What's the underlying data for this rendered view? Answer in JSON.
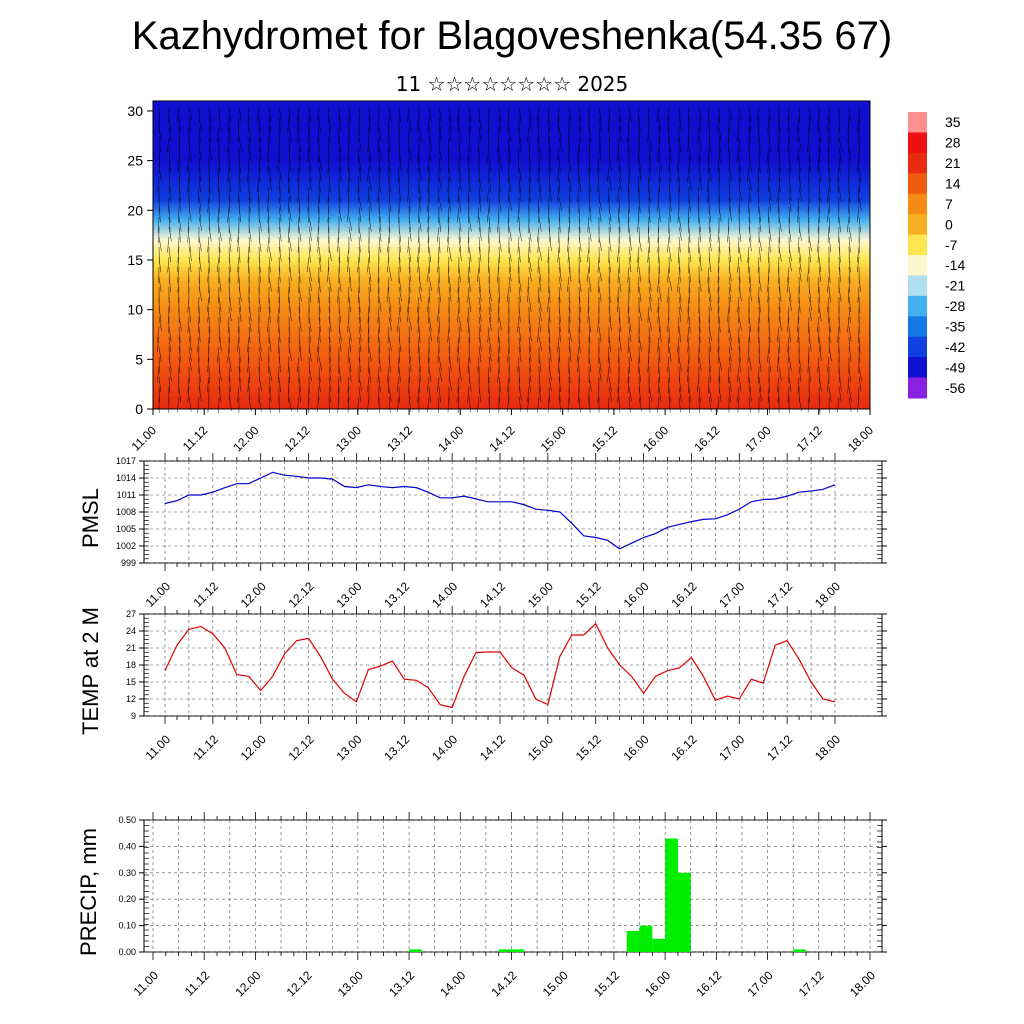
{
  "header": {
    "title": "Kazhydromet for Blagoveshenka(54.35 67)",
    "subtitle": "11 ☆☆☆☆☆☆☆☆ 2025"
  },
  "chart_data": [
    {
      "type": "heatmap",
      "title": "",
      "xlabel": "",
      "ylabel": "",
      "x_ticks": [
        "11.00",
        "11.12",
        "12.00",
        "12.12",
        "13.00",
        "13.12",
        "14.00",
        "14.12",
        "15.00",
        "15.12",
        "16.00",
        "16.12",
        "17.00",
        "17.12",
        "18.00"
      ],
      "y_ticks": [
        0,
        5,
        10,
        15,
        20,
        25,
        30
      ],
      "ylim": [
        0,
        31
      ],
      "colorbar_labels": [
        "35",
        "28",
        "21",
        "14",
        "7",
        "0",
        "-7",
        "-14",
        "-21",
        "-28",
        "-35",
        "-42",
        "-49",
        "-56"
      ],
      "colors": {
        "35": "#ff9090",
        "28": "#ee1010",
        "21": "#e82a10",
        "14": "#f25a10",
        "7": "#f58a15",
        "0": "#f9b020",
        "-7": "#fde650",
        "-14": "#fdf8d0",
        "-21": "#b0dff2",
        "-28": "#45b0f0",
        "-35": "#1878e8",
        "-42": "#1040e0",
        "-49": "#1010d0",
        "-56": "#8a20e0"
      },
      "temperature_by_height": [
        {
          "height": 0,
          "value": 21
        },
        {
          "height": 5,
          "value": 14
        },
        {
          "height": 10,
          "value": 7
        },
        {
          "height": 13,
          "value": 0
        },
        {
          "height": 15,
          "value": -7
        },
        {
          "height": 17,
          "value": -14
        },
        {
          "height": 19,
          "value": -28
        },
        {
          "height": 21,
          "value": -42
        },
        {
          "height": 25,
          "value": -49
        },
        {
          "height": 31,
          "value": -49
        }
      ],
      "wind_barbs": true
    },
    {
      "type": "line",
      "ylabel": "PMSL",
      "ylim": [
        999,
        1017
      ],
      "y_ticks": [
        "1017",
        "1014",
        "1011",
        "1008",
        "1005",
        "1002",
        "999"
      ],
      "x_ticks": [
        "11.00",
        "11.12",
        "12.00",
        "12.12",
        "13.00",
        "13.12",
        "14.00",
        "14.12",
        "15.00",
        "15.12",
        "16.00",
        "16.12",
        "17.00",
        "17.12",
        "18.00"
      ],
      "grid": true,
      "color": "#0000cc",
      "x": [
        0,
        3,
        6,
        9,
        12,
        15,
        18,
        21,
        24,
        27,
        30,
        33,
        36,
        39,
        42,
        45,
        48,
        51,
        54,
        57,
        60,
        63,
        66,
        69,
        72,
        75,
        78,
        81,
        84,
        87,
        90,
        93,
        96,
        99,
        102,
        105,
        108,
        111,
        114,
        117,
        120,
        123,
        126,
        129,
        132,
        135,
        138,
        141,
        144,
        147,
        150,
        153,
        156,
        159,
        162,
        165,
        168
      ],
      "values": [
        1009.5,
        1010,
        1011,
        1011,
        1011.5,
        1012.3,
        1013,
        1013,
        1014,
        1015,
        1014.5,
        1014.3,
        1014,
        1014,
        1013.8,
        1012.5,
        1012.3,
        1012.8,
        1012.5,
        1012.3,
        1012.5,
        1012.3,
        1011.5,
        1010.5,
        1010.5,
        1010.8,
        1010.3,
        1009.8,
        1009.8,
        1009.8,
        1009.3,
        1008.5,
        1008.3,
        1008,
        1006,
        1003.8,
        1003.5,
        1003,
        1001.5,
        1002.5,
        1003.5,
        1004.2,
        1005.3,
        1005.8,
        1006.3,
        1006.7,
        1006.8,
        1007.5,
        1008.5,
        1009.8,
        1010.2,
        1010.3,
        1010.8,
        1011.5,
        1011.7,
        1012,
        1012.8
      ]
    },
    {
      "type": "line",
      "ylabel": "TEMP at 2 M",
      "ylim": [
        9,
        27
      ],
      "y_ticks": [
        "27",
        "24",
        "21",
        "18",
        "15",
        "12",
        "9"
      ],
      "x_ticks": [
        "11.00",
        "11.12",
        "12.00",
        "12.12",
        "13.00",
        "13.12",
        "14.00",
        "14.12",
        "15.00",
        "15.12",
        "16.00",
        "16.12",
        "17.00",
        "17.12",
        "18.00"
      ],
      "grid": true,
      "color": "#dd0000",
      "x": [
        0,
        3,
        6,
        9,
        12,
        15,
        18,
        21,
        24,
        27,
        30,
        33,
        36,
        39,
        42,
        45,
        48,
        51,
        54,
        57,
        60,
        63,
        66,
        69,
        72,
        75,
        78,
        81,
        84,
        87,
        90,
        93,
        96,
        99,
        102,
        105,
        108,
        111,
        114,
        117,
        120,
        123,
        126,
        129,
        132,
        135,
        138,
        141,
        144,
        147,
        150,
        153,
        156,
        159,
        162,
        165,
        168
      ],
      "values": [
        17,
        21.5,
        24.3,
        24.8,
        23.5,
        21,
        16.3,
        16,
        13.5,
        16,
        20,
        22.3,
        22.7,
        19.5,
        15.5,
        13,
        11.5,
        17.2,
        17.8,
        18.7,
        15.5,
        15.3,
        14,
        11,
        10.5,
        16,
        20.2,
        20.3,
        20.3,
        17.5,
        16.2,
        12,
        11,
        19.5,
        23.3,
        23.3,
        25.3,
        21,
        18,
        16,
        13,
        16,
        17,
        17.5,
        19.3,
        16,
        11.8,
        12.5,
        12,
        15.5,
        14.8,
        21.5,
        22.3,
        19,
        15,
        12,
        11.5
      ]
    },
    {
      "type": "bar",
      "ylabel": "PRECIP, mm",
      "ylim": [
        0,
        0.5
      ],
      "y_ticks": [
        "0.50",
        "0.40",
        "0.30",
        "0.20",
        "0.10",
        "0.00"
      ],
      "x_ticks": [
        "11.00",
        "11.12",
        "12.00",
        "12.12",
        "13.00",
        "13.12",
        "14.00",
        "14.12",
        "15.00",
        "15.12",
        "16.00",
        "16.12",
        "17.00",
        "17.12",
        "18.00"
      ],
      "grid": true,
      "color": "#00ee00",
      "bars": [
        {
          "x": 60,
          "value": 0.01
        },
        {
          "x": 81,
          "value": 0.01
        },
        {
          "x": 84,
          "value": 0.01
        },
        {
          "x": 111,
          "value": 0.08
        },
        {
          "x": 114,
          "value": 0.1
        },
        {
          "x": 117,
          "value": 0.05
        },
        {
          "x": 120,
          "value": 0.43
        },
        {
          "x": 123,
          "value": 0.3
        },
        {
          "x": 150,
          "value": 0.01
        }
      ]
    }
  ]
}
